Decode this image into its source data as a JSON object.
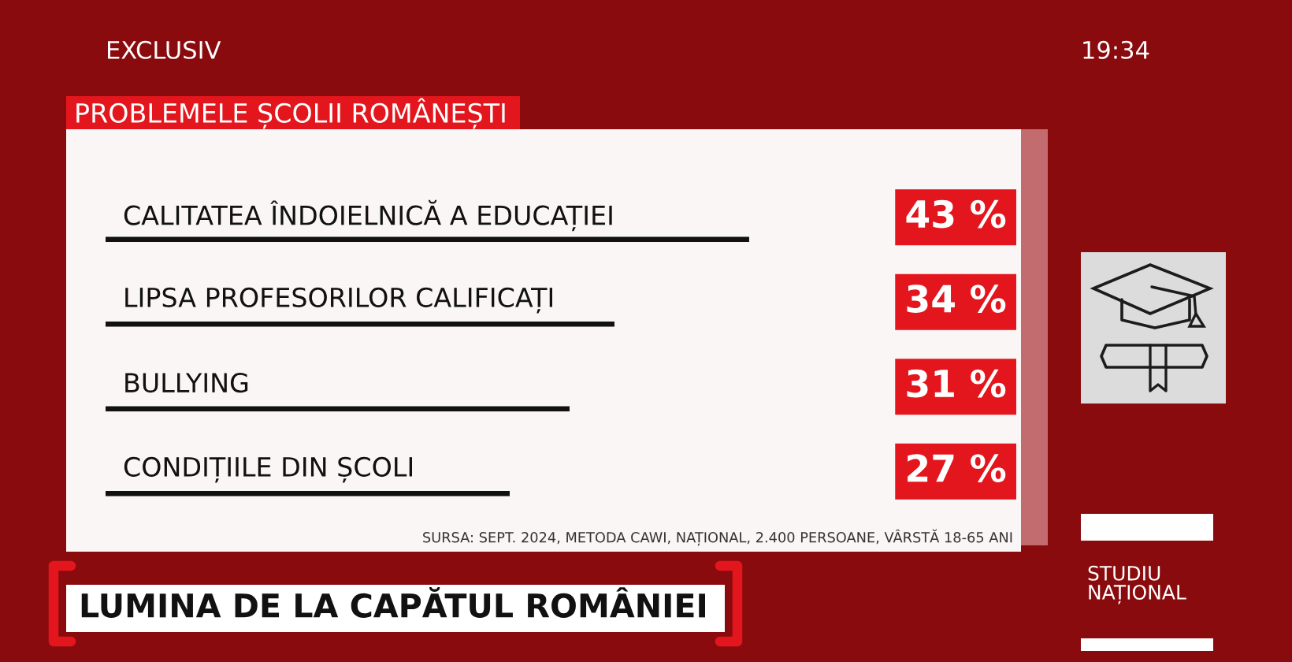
{
  "chart_data": {
    "type": "bar",
    "orientation": "horizontal",
    "title": "PROBLEMELE ȘCOLII ROMÂNEȘTI",
    "categories": [
      "CALITATEA ÎNDOIELNICĂ A EDUCAȚIEI",
      "LIPSA PROFESORILOR CALIFICAȚI",
      "BULLYING",
      "CONDIȚIILE DIN ȘCOLI"
    ],
    "values": [
      43,
      34,
      31,
      27
    ],
    "color": "#111111",
    "value_labels": [
      "43 %",
      "34 %",
      "31 %",
      "27 %"
    ],
    "tick_labels": "y",
    "annotations": [
      "EXCLUSIV",
      "19:34",
      "SURSA: SEPT. 2024, METODA CAWI, NAȚIONAL, 2.400 PERSOANE, VÂRSTĂ 18-65 ANI",
      "LUMINA DE LA CAPĂTUL ROMÂNIEI",
      "STUDIU\nNAȚIONAL"
    ]
  }
}
